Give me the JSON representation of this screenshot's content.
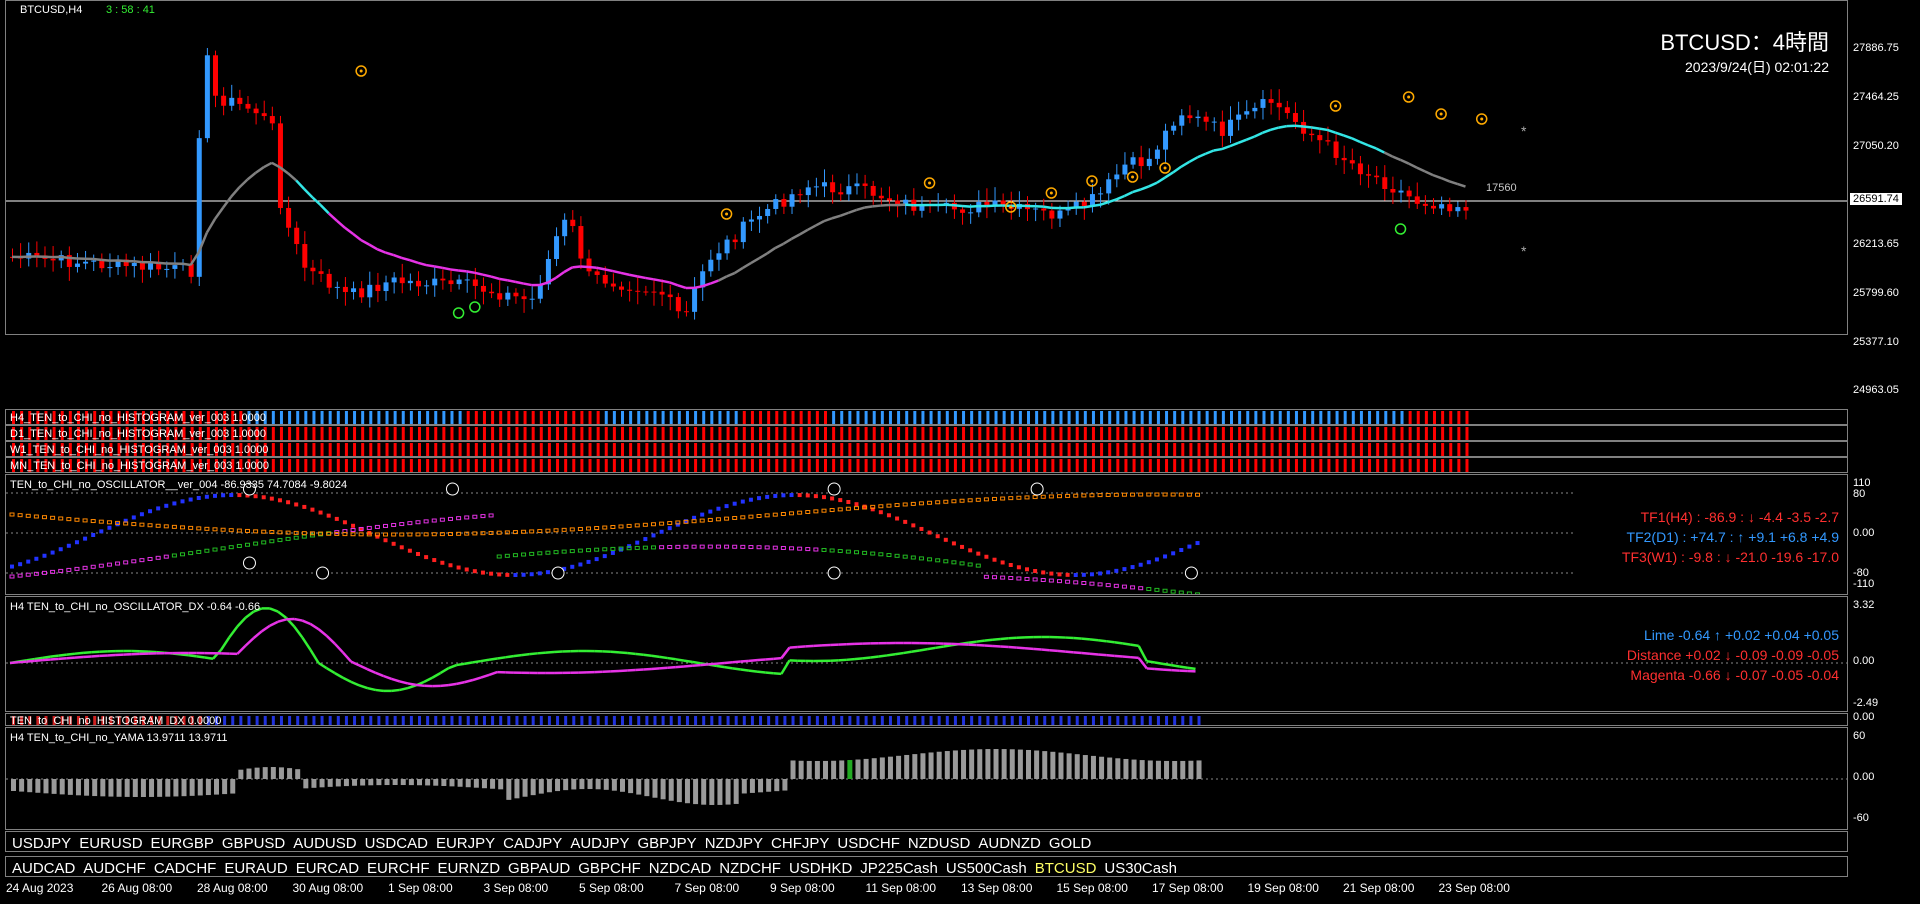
{
  "header": {
    "symbol_tf": "BTCUSD,H4",
    "countdown": "3 : 58 : 41",
    "title": "BTCUSD：4時間",
    "datetime": "2023/9/24(日) 02:01:22",
    "line_label": "17560",
    "current_price": "26591.74"
  },
  "price_scale": [
    "27886.75",
    "27464.25",
    "27050.20",
    "26213.65",
    "25799.60",
    "25377.10",
    "24963.05"
  ],
  "histogram_labels": [
    "H4_TEN_to_CHI_no_HISTOGRAM_ver_003 1.0000",
    "D1_TEN_to_CHI_no_HISTOGRAM_ver_003 1.0000",
    "W1_TEN_to_CHI_no_HISTOGRAM_ver_003 1.0000",
    "MN_TEN_to_CHI_no_HISTOGRAM_ver_003 1.0000"
  ],
  "osc": {
    "label": "TEN_to_CHI_no_OSCILLATOR__ver_004 -86.9335 74.7084 -9.8024",
    "scale": [
      "110",
      "80",
      "0.00",
      "-80",
      "-110"
    ],
    "tf1": "TF1(H4) : -86.9 : ↓ -4.4 -3.5 -2.7",
    "tf2": "TF2(D1) : +74.7 : ↑ +9.1 +6.8 +4.9",
    "tf3": "TF3(W1) : -9.8 : ↓ -21.0 -19.6 -17.0"
  },
  "dx": {
    "label": "H4 TEN_to_CHI_no_OSCILLATOR_DX -0.64 -0.66",
    "scale": [
      "3.32",
      "0.00",
      "-2.49"
    ],
    "lime": "Lime -0.64 ↑ +0.02 +0.04 +0.05",
    "distance": "Distance +0.02 ↓ -0.09 -0.09 -0.05",
    "magenta": "Magenta -0.66 ↓ -0.07 -0.05 -0.04"
  },
  "dx_hist": {
    "label": "TEN_to_CHI_no_HISTOGRAM_DX 0.0000",
    "scale": "0.00"
  },
  "yama": {
    "label": "H4 TEN_to_CHI_no_YAMA 13.9711 13.9711",
    "scale": [
      "60",
      "0.00",
      "-60"
    ]
  },
  "symbols_row1": [
    "USDJPY",
    "EURUSD",
    "EURGBP",
    "GBPUSD",
    "AUDUSD",
    "USDCAD",
    "EURJPY",
    "CADJPY",
    "AUDJPY",
    "GBPJPY",
    "NZDJPY",
    "CHFJPY",
    "USDCHF",
    "NZDUSD",
    "AUDNZD",
    "GOLD"
  ],
  "symbols_row2": [
    "AUDCAD",
    "AUDCHF",
    "CADCHF",
    "EURAUD",
    "EURCAD",
    "EURCHF",
    "EURNZD",
    "GBPAUD",
    "GBPCHF",
    "NZDCAD",
    "NZDCHF",
    "USDHKD",
    "JP225Cash",
    "US500Cash",
    "BTCUSD",
    "US30Cash"
  ],
  "active_symbol": "BTCUSD",
  "time_axis": [
    "24 Aug 2023",
    "26 Aug 08:00",
    "28 Aug 08:00",
    "30 Aug 08:00",
    "1 Sep 08:00",
    "3 Sep 08:00",
    "5 Sep 08:00",
    "7 Sep 08:00",
    "9 Sep 08:00",
    "11 Sep 08:00",
    "13 Sep 08:00",
    "15 Sep 08:00",
    "17 Sep 08:00",
    "19 Sep 08:00",
    "21 Sep 08:00",
    "23 Sep 08:00"
  ],
  "colors": {
    "bull": "#3399ff",
    "bear": "#ff0000",
    "cyan": "#33e6e6",
    "magenta": "#e633e6",
    "lime": "#33ee33",
    "gray": "#808080",
    "gold": "#ffaa00",
    "active": "#ffff66"
  }
}
